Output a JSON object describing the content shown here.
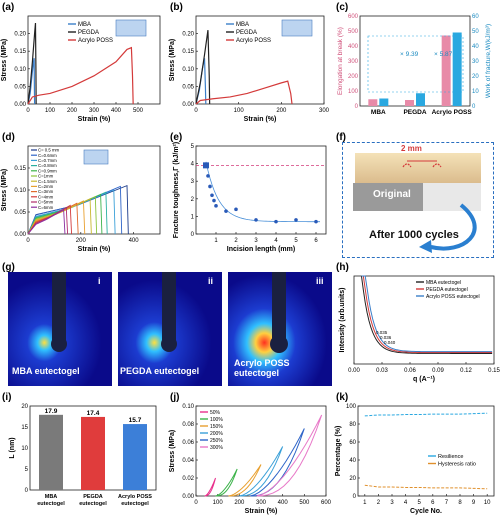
{
  "panels": {
    "a": {
      "label": "(a)",
      "chart_data": {
        "type": "line",
        "xlabel": "Strain (%)",
        "ylabel": "Stress (MPa)",
        "xlim": [
          0,
          600
        ],
        "ylim": [
          0,
          0.25
        ],
        "xticks": [
          0,
          100,
          200,
          300,
          400,
          500
        ],
        "yticks": [
          0.0,
          0.05,
          0.1,
          0.15,
          0.2
        ],
        "series": [
          {
            "name": "MBA",
            "color": "#3c7fc9",
            "x": [
              0,
              10,
              18,
              25,
              28,
              29,
              30
            ],
            "y": [
              0,
              0.03,
              0.08,
              0.12,
              0.13,
              0.05,
              0
            ]
          },
          {
            "name": "PEGDA",
            "color": "#222222",
            "x": [
              0,
              10,
              20,
              30,
              34,
              36,
              37
            ],
            "y": [
              0,
              0.05,
              0.12,
              0.2,
              0.23,
              0.1,
              0
            ]
          },
          {
            "name": "Acrylo POSS",
            "color": "#d43a3a",
            "x": [
              0,
              20,
              50,
              100,
              200,
              300,
              400,
              450,
              470,
              475,
              478
            ],
            "y": [
              0,
              0.02,
              0.025,
              0.03,
              0.05,
              0.08,
              0.12,
              0.155,
              0.16,
              0.08,
              0
            ]
          }
        ]
      }
    },
    "b": {
      "label": "(b)",
      "chart_data": {
        "type": "line",
        "xlabel": "Strain (%)",
        "ylabel": "Stress (MPa)",
        "xlim": [
          0,
          300
        ],
        "ylim": [
          0,
          0.25
        ],
        "xticks": [
          0,
          100,
          200,
          300
        ],
        "yticks": [
          0.0,
          0.05,
          0.1,
          0.15,
          0.2
        ],
        "series": [
          {
            "name": "MBA",
            "color": "#3c7fc9",
            "x": [
              0,
              8,
              15,
              20,
              22,
              23
            ],
            "y": [
              0,
              0.04,
              0.1,
              0.13,
              0.05,
              0
            ]
          },
          {
            "name": "PEGDA",
            "color": "#222222",
            "x": [
              0,
              10,
              20,
              28,
              31,
              32
            ],
            "y": [
              0,
              0.06,
              0.14,
              0.21,
              0.08,
              0
            ]
          },
          {
            "name": "Acrylo POSS",
            "color": "#d43a3a",
            "x": [
              0,
              10,
              40,
              80,
              120,
              160,
              200,
              215,
              222,
              225
            ],
            "y": [
              0,
              0.01,
              0.015,
              0.02,
              0.03,
              0.045,
              0.06,
              0.065,
              0.03,
              0
            ]
          }
        ]
      }
    },
    "c": {
      "label": "(c)",
      "chart_data": {
        "type": "bar",
        "categories": [
          "MBA",
          "PEGDA",
          "Acrylo POSS"
        ],
        "xlabel": "",
        "ylabel": "Elongation at break (%)",
        "y2label": "Work of fracture,W(kJ/m³)",
        "ylim": [
          0,
          600
        ],
        "y2lim": [
          0,
          60
        ],
        "yticks": [
          0,
          100,
          200,
          300,
          400,
          500,
          600
        ],
        "y2ticks": [
          0,
          10,
          20,
          30,
          40,
          50,
          60
        ],
        "series": [
          {
            "name": "Elongation at break",
            "color": "#e88aa8",
            "axis": "left",
            "values": [
              45,
              40,
              470
            ]
          },
          {
            "name": "Work of fracture",
            "color": "#2aa8e0",
            "axis": "right",
            "values": [
              5,
              8.5,
              49
            ]
          }
        ],
        "annotations": [
          "× 9.39",
          "× 5.87"
        ]
      }
    },
    "d": {
      "label": "(d)",
      "chart_data": {
        "type": "line",
        "xlabel": "Strain (%)",
        "ylabel": "Stress (MPa)",
        "xlim": [
          0,
          500
        ],
        "ylim": [
          0,
          0.2
        ],
        "xticks": [
          0,
          200,
          400
        ],
        "yticks": [
          0.0,
          0.05,
          0.1,
          0.15
        ],
        "legend": [
          {
            "label": "C= 0.5 mm",
            "color": "#1a3a8a"
          },
          {
            "label": "C=0.6mm",
            "color": "#2e64c8"
          },
          {
            "label": "C=0.7mm",
            "color": "#3aa0d8"
          },
          {
            "label": "C=0.8mm",
            "color": "#2bb0a0"
          },
          {
            "label": "C=0.9mm",
            "color": "#3cb34a"
          },
          {
            "label": "C=1mm",
            "color": "#8cc43c"
          },
          {
            "label": "C=1.5mm",
            "color": "#c8b830"
          },
          {
            "label": "C=2mm",
            "color": "#e8a030"
          },
          {
            "label": "C=3mm",
            "color": "#e06a2c"
          },
          {
            "label": "C=4mm",
            "color": "#d43a3a"
          },
          {
            "label": "C=5mm",
            "color": "#b02c6a"
          },
          {
            "label": "C=6mm",
            "color": "#8a2ca0"
          }
        ],
        "curves": [
          {
            "break_x": 380,
            "peak": 0.11
          },
          {
            "break_x": 355,
            "peak": 0.108
          },
          {
            "break_x": 330,
            "peak": 0.1
          },
          {
            "break_x": 300,
            "peak": 0.095
          },
          {
            "break_x": 280,
            "peak": 0.09
          },
          {
            "break_x": 260,
            "peak": 0.085
          },
          {
            "break_x": 240,
            "peak": 0.08
          },
          {
            "break_x": 215,
            "peak": 0.075
          },
          {
            "break_x": 190,
            "peak": 0.07
          },
          {
            "break_x": 165,
            "peak": 0.065
          },
          {
            "break_x": 150,
            "peak": 0.06
          },
          {
            "break_x": 140,
            "peak": 0.055
          }
        ]
      }
    },
    "e": {
      "label": "(e)",
      "chart_data": {
        "type": "scatter",
        "xlabel": "Incision length (mm)",
        "ylabel": "Fracture toughness,Γ (kJ/m²)",
        "xlim": [
          0,
          6.5
        ],
        "ylim": [
          0,
          5
        ],
        "xticks": [
          1,
          2,
          3,
          4,
          5,
          6
        ],
        "yticks": [
          0,
          1,
          2,
          3,
          4,
          5
        ],
        "x": [
          0.5,
          0.6,
          0.7,
          0.8,
          0.9,
          1,
          1.5,
          2,
          3,
          4,
          5,
          6
        ],
        "y": [
          3.9,
          3.3,
          2.7,
          2.2,
          1.9,
          1.6,
          1.3,
          1.4,
          0.8,
          0.7,
          0.8,
          0.7
        ],
        "reference_y": 3.9
      }
    },
    "f": {
      "label": "(f)",
      "dimension": "2 mm",
      "caption_original": "Original",
      "caption_after": "After 1000 cycles"
    },
    "g": {
      "label": "(g)",
      "images": [
        {
          "tag": "i",
          "caption": "MBA eutectogel"
        },
        {
          "tag": "ii",
          "caption": "PEGDA eutectogel"
        },
        {
          "tag": "iii",
          "caption": "Acrylo POSS eutectogel"
        }
      ]
    },
    "h": {
      "label": "(h)",
      "chart_data": {
        "type": "line",
        "xlabel": "q (A⁻¹)",
        "ylabel": "Intensity (arb.units)",
        "xlim": [
          0,
          0.15
        ],
        "xticks": [
          0.0,
          0.03,
          0.06,
          0.09,
          0.12,
          0.15
        ],
        "series": [
          {
            "name": "MBA eutectogel",
            "color": "#222222"
          },
          {
            "name": "PEGDA eutectogel",
            "color": "#d43a3a"
          },
          {
            "name": "Acrylo POSS eutectogel",
            "color": "#3c7fc9"
          }
        ],
        "annotations": [
          "0.035",
          "0.036",
          "0.040"
        ]
      }
    },
    "i": {
      "label": "(i)",
      "chart_data": {
        "type": "bar",
        "categories": [
          "MBA eutectogel",
          "PEGDA eutectogel",
          "Acrylo POSS eutectogel"
        ],
        "ylabel": "L (nm)",
        "ylim": [
          0,
          20
        ],
        "yticks": [
          0,
          5,
          10,
          15,
          20
        ],
        "values": [
          17.9,
          17.4,
          15.7
        ],
        "colors": [
          "#7a7a7a",
          "#e03c3c",
          "#3c7fd8"
        ]
      }
    },
    "j": {
      "label": "(j)",
      "chart_data": {
        "type": "line",
        "xlabel": "Strain (%)",
        "ylabel": "Stress (MPa)",
        "xlim": [
          0,
          600
        ],
        "ylim": [
          0,
          0.1
        ],
        "xticks": [
          0,
          100,
          200,
          300,
          400,
          500,
          600
        ],
        "yticks": [
          0.0,
          0.02,
          0.04,
          0.06,
          0.08,
          0.1
        ],
        "series": [
          {
            "name": "50%",
            "color": "#e8308c",
            "offset": 40,
            "max_strain": 50,
            "peak": 0.02
          },
          {
            "name": "100%",
            "color": "#3cb34a",
            "offset": 90,
            "max_strain": 100,
            "peak": 0.03
          },
          {
            "name": "150%",
            "color": "#e8a030",
            "offset": 150,
            "max_strain": 150,
            "peak": 0.035
          },
          {
            "name": "200%",
            "color": "#3aa0d8",
            "offset": 200,
            "max_strain": 200,
            "peak": 0.055
          },
          {
            "name": "250%",
            "color": "#2e64c8",
            "offset": 250,
            "max_strain": 250,
            "peak": 0.075
          },
          {
            "name": "300%",
            "color": "#e878c8",
            "offset": 280,
            "max_strain": 300,
            "peak": 0.09
          }
        ]
      }
    },
    "k": {
      "label": "(k)",
      "chart_data": {
        "type": "line",
        "xlabel": "Cycle No.",
        "ylabel": "Percentage (%)",
        "xlim": [
          0.5,
          10.5
        ],
        "ylim": [
          0,
          100
        ],
        "xticks": [
          1,
          2,
          3,
          4,
          5,
          6,
          7,
          8,
          9,
          10
        ],
        "yticks": [
          0,
          20,
          40,
          60,
          80,
          100
        ],
        "series": [
          {
            "name": "Resilience",
            "color": "#2aa8e0",
            "x": [
              1,
              2,
              3,
              4,
              5,
              6,
              7,
              8,
              9,
              10
            ],
            "y": [
              89,
              90,
              90,
              90.5,
              90.5,
              91,
              91,
              91,
              91.5,
              92
            ]
          },
          {
            "name": "Hysteresis ratio",
            "color": "#e0902c",
            "x": [
              1,
              2,
              3,
              4,
              5,
              6,
              7,
              8,
              9,
              10
            ],
            "y": [
              12,
              10,
              10,
              9.5,
              9.5,
              9,
              9,
              9,
              8.5,
              8
            ]
          }
        ]
      }
    }
  }
}
